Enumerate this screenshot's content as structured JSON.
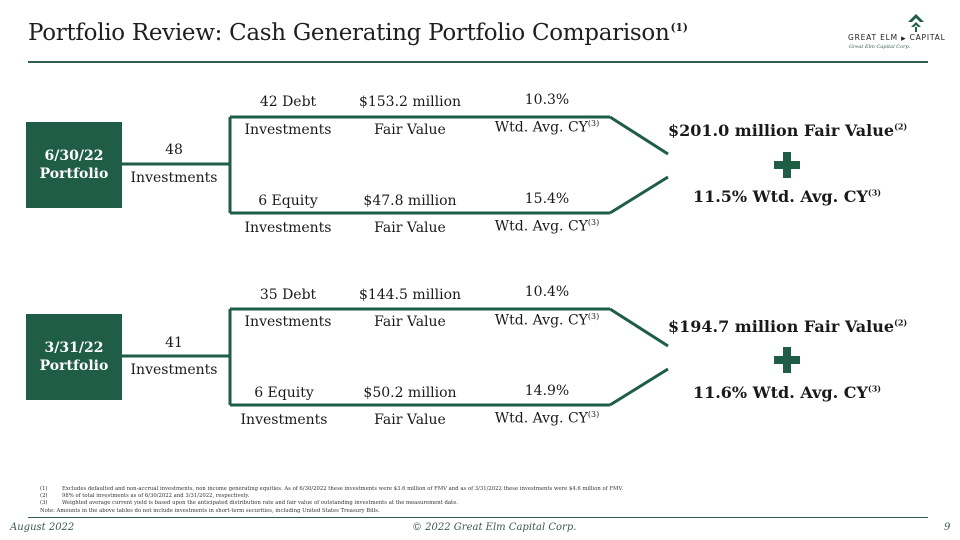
{
  "header": {
    "title": "Portfolio Review: Cash Generating Portfolio Comparison",
    "title_sup": "(1)",
    "logo_name": "GREAT ELM",
    "logo_name2": "CAPITAL",
    "logo_sub": "Great Elm Capital Corp."
  },
  "colors": {
    "accent": "#1f5d47",
    "rule": "#2f5d4a"
  },
  "portfolios": [
    {
      "box_line1": "6/30/22",
      "box_line2": "Portfolio",
      "total_count": "48",
      "total_label": "Investments",
      "debt": {
        "count": "42 Debt",
        "label": "Investments",
        "fv": "$153.2 million",
        "fv_label": "Fair Value",
        "cy": "10.3%",
        "cy_label": "Wtd. Avg. CY",
        "cy_sup": "(3)"
      },
      "equity": {
        "count": "6 Equity",
        "label": "Investments",
        "fv": "$47.8 million",
        "fv_label": "Fair Value",
        "cy": "15.4%",
        "cy_label": "Wtd. Avg. CY",
        "cy_sup": "(3)"
      },
      "summary_fv": "$201.0 million Fair Value",
      "summary_fv_sup": "(2)",
      "summary_cy": "11.5% Wtd. Avg. CY",
      "summary_cy_sup": "(3)"
    },
    {
      "box_line1": "3/31/22",
      "box_line2": "Portfolio",
      "total_count": "41",
      "total_label": "Investments",
      "debt": {
        "count": "35 Debt",
        "label": "Investments",
        "fv": "$144.5 million",
        "fv_label": "Fair Value",
        "cy": "10.4%",
        "cy_label": "Wtd. Avg. CY",
        "cy_sup": "(3)"
      },
      "equity": {
        "count": "6 Equity",
        "label": "Investments",
        "fv": "$50.2 million",
        "fv_label": "Fair Value",
        "cy": "14.9%",
        "cy_label": "Wtd. Avg. CY",
        "cy_sup": "(3)"
      },
      "summary_fv": "$194.7 million Fair Value",
      "summary_fv_sup": "(2)",
      "summary_cy": "11.6% Wtd. Avg. CY",
      "summary_cy_sup": "(3)"
    }
  ],
  "footnotes": [
    {
      "num": "(1)",
      "text": "Excludes defaulted and non-accrual investments, non income generating equities. As of 6/30/2022 these investments were $3.6 million of FMV and as of 3/31/2022 these investments were $4.6 million of FMV."
    },
    {
      "num": "(2)",
      "text": "98% of total investments as of 6/30/2022 and 3/31/2022, respectively."
    },
    {
      "num": "(3)",
      "text": "Weighted average current yield is based upon the anticipated distribution rate and fair value of outstanding investments at the measurement date."
    },
    {
      "num": "",
      "text": "Note: Amounts in the above tables do not include investments in short-term securities, including United States Treasury Bills."
    }
  ],
  "footer": {
    "date": "August 2022",
    "copyright": "© 2022 Great Elm Capital Corp.",
    "page": "9"
  }
}
